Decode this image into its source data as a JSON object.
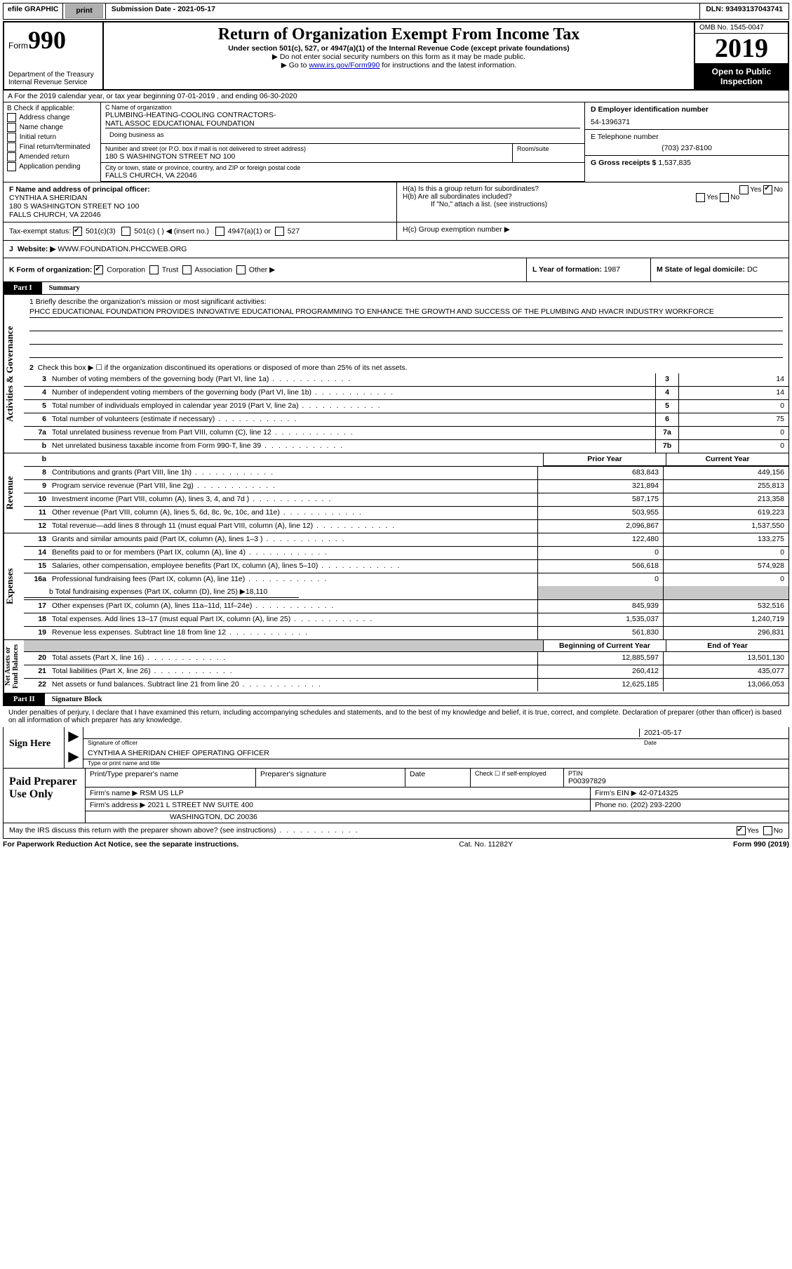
{
  "topbar": {
    "efile": "efile GRAPHIC",
    "print": "print",
    "submission": "Submission Date - 2021-05-17",
    "dln": "DLN: 93493137043741"
  },
  "header": {
    "form_prefix": "Form",
    "form_number": "990",
    "dept": "Department of the Treasury\nInternal Revenue Service",
    "title": "Return of Organization Exempt From Income Tax",
    "subtitle": "Under section 501(c), 527, or 4947(a)(1) of the Internal Revenue Code (except private foundations)",
    "note1": "▶ Do not enter social security numbers on this form as it may be made public.",
    "note2_pre": "▶ Go to ",
    "note2_link": "www.irs.gov/Form990",
    "note2_post": " for instructions and the latest information.",
    "omb": "OMB No. 1545-0047",
    "year": "2019",
    "open": "Open to Public Inspection"
  },
  "row_a": "A For the 2019 calendar year, or tax year beginning 07-01-2019    , and ending 06-30-2020",
  "col_b": {
    "label": "B Check if applicable:",
    "addr_change": "Address change",
    "name_change": "Name change",
    "initial": "Initial return",
    "final": "Final return/terminated",
    "amended": "Amended return",
    "app_pending": "Application pending"
  },
  "box_c": {
    "name_label": "C Name of organization",
    "name": "PLUMBING-HEATING-COOLING CONTRACTORS-\nNATL ASSOC EDUCATIONAL FOUNDATION",
    "dba_label": "Doing business as",
    "street_label": "Number and street (or P.O. box if mail is not delivered to street address)",
    "street": "180 S WASHINGTON STREET NO 100",
    "room_label": "Room/suite",
    "city_label": "City or town, state or province, country, and ZIP or foreign postal code",
    "city": "FALLS CHURCH, VA  22046"
  },
  "box_d": {
    "label": "D Employer identification number",
    "val": "54-1396371"
  },
  "box_e": {
    "label": "E Telephone number",
    "val": "(703) 237-8100"
  },
  "box_g": {
    "label": "G Gross receipts $",
    "val": "1,537,835"
  },
  "box_f": {
    "label": "F  Name and address of principal officer:",
    "name": "CYNTHIA A SHERIDAN",
    "addr": "180 S WASHINGTON STREET NO 100\nFALLS CHURCH, VA  22046"
  },
  "box_h": {
    "ha": "H(a)  Is this a group return for subordinates?",
    "hb": "H(b)  Are all subordinates included?",
    "note": "If \"No,\" attach a list. (see instructions)",
    "hc": "H(c)  Group exemption number ▶",
    "yes": "Yes",
    "no": "No"
  },
  "tax_exempt": {
    "label": "Tax-exempt status:",
    "o1": "501(c)(3)",
    "o2": "501(c) (  ) ◀ (insert no.)",
    "o3": "4947(a)(1) or",
    "o4": "527"
  },
  "box_j": {
    "lbl": "J",
    "web": "Website: ▶",
    "val": "WWW.FOUNDATION.PHCCWEB.ORG"
  },
  "box_k": "K Form of organization:",
  "k_opts": {
    "corp": "Corporation",
    "trust": "Trust",
    "assoc": "Association",
    "other": "Other ▶"
  },
  "box_l": {
    "lbl": "L Year of formation:",
    "val": "1987"
  },
  "box_m": {
    "lbl": "M State of legal domicile:",
    "val": "DC"
  },
  "part1": {
    "tab": "Part I",
    "title": "Summary"
  },
  "briefly": "1  Briefly describe the organization's mission or most significant activities:",
  "mission": "PHCC EDUCATIONAL FOUNDATION PROVIDES INNOVATIVE EDUCATIONAL PROGRAMMING TO ENHANCE THE GROWTH AND SUCCESS OF THE PLUMBING AND HVACR INDUSTRY WORKFORCE",
  "q2": "Check this box ▶ ☐  if the organization discontinued its operations or disposed of more than 25% of its net assets.",
  "vtabs": {
    "gov": "Activities & Governance",
    "rev": "Revenue",
    "exp": "Expenses",
    "net": "Net Assets or\nFund Balances"
  },
  "rows_gov": [
    {
      "n": "3",
      "t": "Number of voting members of the governing body (Part VI, line 1a)",
      "c": "3",
      "v": "14"
    },
    {
      "n": "4",
      "t": "Number of independent voting members of the governing body (Part VI, line 1b)",
      "c": "4",
      "v": "14"
    },
    {
      "n": "5",
      "t": "Total number of individuals employed in calendar year 2019 (Part V, line 2a)",
      "c": "5",
      "v": "0"
    },
    {
      "n": "6",
      "t": "Total number of volunteers (estimate if necessary)",
      "c": "6",
      "v": "75"
    },
    {
      "n": "7a",
      "t": "Total unrelated business revenue from Part VIII, column (C), line 12",
      "c": "7a",
      "v": "0"
    },
    {
      "n": "b",
      "t": "Net unrelated business taxable income from Form 990-T, line 39",
      "c": "7b",
      "v": "0"
    }
  ],
  "prior_hdr": "Prior Year",
  "curr_hdr": "Current Year",
  "rows_rev": [
    {
      "n": "8",
      "t": "Contributions and grants (Part VIII, line 1h)",
      "p": "683,843",
      "c": "449,156"
    },
    {
      "n": "9",
      "t": "Program service revenue (Part VIII, line 2g)",
      "p": "321,894",
      "c": "255,813"
    },
    {
      "n": "10",
      "t": "Investment income (Part VIII, column (A), lines 3, 4, and 7d )",
      "p": "587,175",
      "c": "213,358"
    },
    {
      "n": "11",
      "t": "Other revenue (Part VIII, column (A), lines 5, 6d, 8c, 9c, 10c, and 11e)",
      "p": "503,955",
      "c": "619,223"
    },
    {
      "n": "12",
      "t": "Total revenue—add lines 8 through 11 (must equal Part VIII, column (A), line 12)",
      "p": "2,096,867",
      "c": "1,537,550"
    }
  ],
  "rows_exp": [
    {
      "n": "13",
      "t": "Grants and similar amounts paid (Part IX, column (A), lines 1–3 )",
      "p": "122,480",
      "c": "133,275"
    },
    {
      "n": "14",
      "t": "Benefits paid to or for members (Part IX, column (A), line 4)",
      "p": "0",
      "c": "0"
    },
    {
      "n": "15",
      "t": "Salaries, other compensation, employee benefits (Part IX, column (A), lines 5–10)",
      "p": "566,618",
      "c": "574,928"
    },
    {
      "n": "16a",
      "t": "Professional fundraising fees (Part IX, column (A), line 11e)",
      "p": "0",
      "c": "0"
    }
  ],
  "row_16b": "b   Total fundraising expenses (Part IX, column (D), line 25) ▶18,110",
  "rows_exp2": [
    {
      "n": "17",
      "t": "Other expenses (Part IX, column (A), lines 11a–11d, 11f–24e)",
      "p": "845,939",
      "c": "532,516"
    },
    {
      "n": "18",
      "t": "Total expenses. Add lines 13–17 (must equal Part IX, column (A), line 25)",
      "p": "1,535,037",
      "c": "1,240,719"
    },
    {
      "n": "19",
      "t": "Revenue less expenses. Subtract line 18 from line 12",
      "p": "561,830",
      "c": "296,831"
    }
  ],
  "beg_hdr": "Beginning of Current Year",
  "end_hdr": "End of Year",
  "rows_net": [
    {
      "n": "20",
      "t": "Total assets (Part X, line 16)",
      "p": "12,885,597",
      "c": "13,501,130"
    },
    {
      "n": "21",
      "t": "Total liabilities (Part X, line 26)",
      "p": "260,412",
      "c": "435,077"
    },
    {
      "n": "22",
      "t": "Net assets or fund balances. Subtract line 21 from line 20",
      "p": "12,625,185",
      "c": "13,066,053"
    }
  ],
  "part2": {
    "tab": "Part II",
    "title": "Signature Block"
  },
  "sig_para": "Under penalties of perjury, I declare that I have examined this return, including accompanying schedules and statements, and to the best of my knowledge and belief, it is true, correct, and complete. Declaration of preparer (other than officer) is based on all information of which preparer has any knowledge.",
  "sign_here": "Sign Here",
  "sig_officer_lbl": "Signature of officer",
  "sig_date_lbl": "Date",
  "sig_date": "2021-05-17",
  "sig_name": "CYNTHIA A SHERIDAN  CHIEF OPERATING OFFICER",
  "sig_name_lbl": "Type or print name and title",
  "paid_left": "Paid Preparer Use Only",
  "paid": {
    "h1": "Print/Type preparer's name",
    "h2": "Preparer's signature",
    "h3": "Date",
    "h4": "Check ☐ if self-employed",
    "h5": "PTIN",
    "ptin": "P00397829",
    "firm_lbl": "Firm's name    ▶",
    "firm": "RSM US LLP",
    "fein_lbl": "Firm's EIN ▶",
    "fein": "42-0714325",
    "addr_lbl": "Firm's address ▶",
    "addr1": "2021 L STREET NW SUITE 400",
    "addr2": "WASHINGTON, DC  20036",
    "phone_lbl": "Phone no.",
    "phone": "(202) 293-2200"
  },
  "irs_discuss": "May the IRS discuss this return with the preparer shown above? (see instructions)",
  "footer": {
    "left": "For Paperwork Reduction Act Notice, see the separate instructions.",
    "mid": "Cat. No. 11282Y",
    "right": "Form 990 (2019)"
  },
  "yes": "Yes",
  "no": "No"
}
